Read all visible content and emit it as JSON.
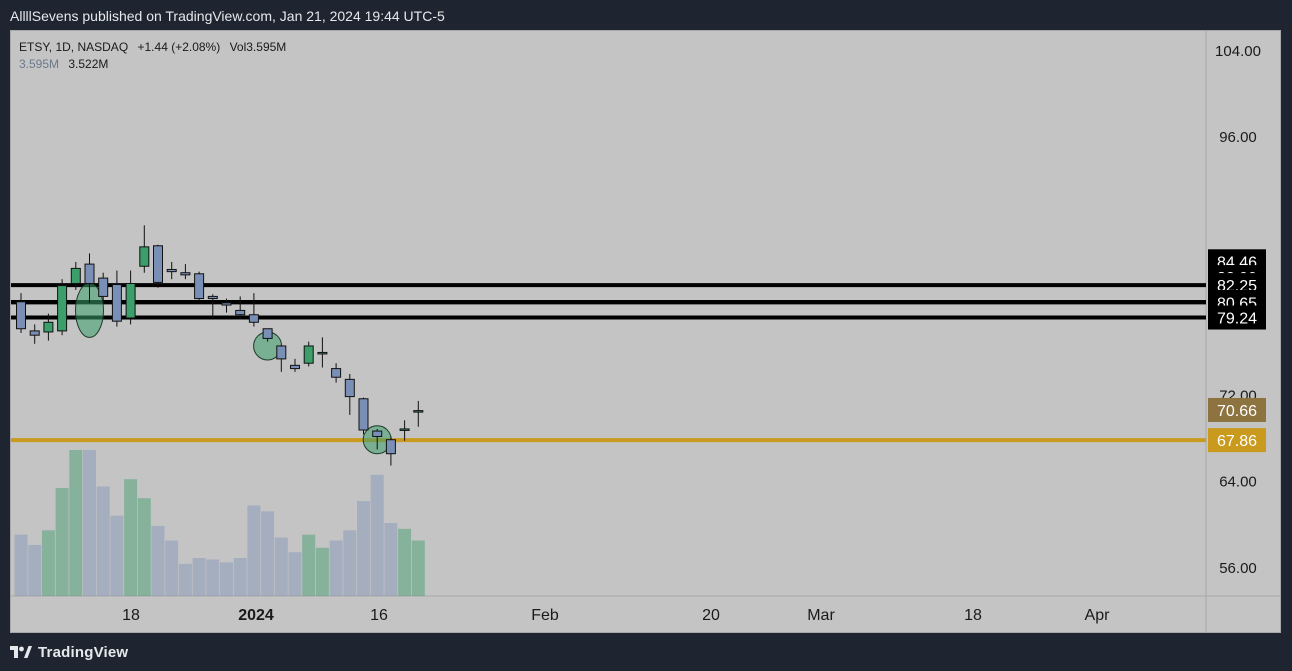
{
  "header": {
    "published": "AllllSevens published on TradingView.com, Jan 21, 2024 19:44 UTC-5"
  },
  "footer": {
    "brand": "TradingView"
  },
  "legend": {
    "symbol": "ETSY, 1D, NASDAQ",
    "change": "+1.44 (+2.08%)",
    "volume": "Vol3.595M",
    "vol_a": "3.595M",
    "vol_b": "3.522M"
  },
  "colors": {
    "up": "#3c9e6a",
    "down": "#7a8fb6",
    "hline": "#000000",
    "gold_line": "#c99a1d",
    "price_badge_dark": "#8c7340",
    "price_badge_gold": "#c99a1d"
  },
  "chart_data": {
    "type": "candlestick",
    "timeframe": "1D",
    "ylim": [
      52,
      105
    ],
    "y_ticks": [
      "104.00",
      "96.00",
      "72.00",
      "64.00",
      "56.00"
    ],
    "x_ticks": [
      "18",
      "2024",
      "16",
      "Feb",
      "20",
      "Mar",
      "18",
      "Apr"
    ],
    "candles": [
      {
        "o": 80.7,
        "h": 81.5,
        "l": 77.8,
        "c": 78.2
      },
      {
        "o": 78.0,
        "h": 78.6,
        "l": 76.8,
        "c": 77.6
      },
      {
        "o": 77.9,
        "h": 79.6,
        "l": 77.1,
        "c": 78.8
      },
      {
        "o": 78.0,
        "h": 82.8,
        "l": 77.6,
        "c": 82.2
      },
      {
        "o": 82.4,
        "h": 84.4,
        "l": 81.8,
        "c": 83.8
      },
      {
        "o": 84.2,
        "h": 85.2,
        "l": 80.6,
        "c": 82.4
      },
      {
        "o": 82.9,
        "h": 83.4,
        "l": 80.6,
        "c": 81.2
      },
      {
        "o": 82.3,
        "h": 83.6,
        "l": 78.4,
        "c": 78.9
      },
      {
        "o": 79.2,
        "h": 83.6,
        "l": 78.6,
        "c": 82.4
      },
      {
        "o": 84.0,
        "h": 87.8,
        "l": 83.4,
        "c": 85.8
      },
      {
        "o": 85.9,
        "h": 86.0,
        "l": 82.0,
        "c": 82.5
      },
      {
        "o": 83.7,
        "h": 84.4,
        "l": 82.8,
        "c": 83.5
      },
      {
        "o": 83.4,
        "h": 84.2,
        "l": 82.8,
        "c": 83.2
      },
      {
        "o": 83.3,
        "h": 83.5,
        "l": 80.8,
        "c": 81.0
      },
      {
        "o": 81.2,
        "h": 81.4,
        "l": 79.2,
        "c": 81.0
      },
      {
        "o": 80.6,
        "h": 81.0,
        "l": 79.7,
        "c": 80.4
      },
      {
        "o": 79.9,
        "h": 81.2,
        "l": 79.1,
        "c": 79.5
      },
      {
        "o": 79.5,
        "h": 81.5,
        "l": 78.4,
        "c": 78.8
      },
      {
        "o": 78.2,
        "h": 78.2,
        "l": 77.0,
        "c": 77.3
      },
      {
        "o": 76.6,
        "h": 76.7,
        "l": 74.2,
        "c": 75.4
      },
      {
        "o": 74.8,
        "h": 75.4,
        "l": 74.2,
        "c": 74.5
      },
      {
        "o": 75.0,
        "h": 77.0,
        "l": 74.7,
        "c": 76.6
      },
      {
        "o": 76.0,
        "h": 77.4,
        "l": 74.6,
        "c": 76.0
      },
      {
        "o": 74.5,
        "h": 75.0,
        "l": 73.2,
        "c": 73.7
      },
      {
        "o": 73.5,
        "h": 74.0,
        "l": 70.2,
        "c": 71.9
      },
      {
        "o": 71.7,
        "h": 71.8,
        "l": 68.4,
        "c": 68.8
      },
      {
        "o": 68.7,
        "h": 68.9,
        "l": 67.0,
        "c": 68.2
      },
      {
        "o": 67.9,
        "h": 68.2,
        "l": 65.5,
        "c": 66.6
      },
      {
        "o": 68.8,
        "h": 69.7,
        "l": 67.8,
        "c": 68.9
      },
      {
        "o": 70.5,
        "h": 71.5,
        "l": 69.1,
        "c": 70.6
      }
    ],
    "volume_relative": [
      0.42,
      0.35,
      0.45,
      0.74,
      1.0,
      1.0,
      0.75,
      0.55,
      0.8,
      0.67,
      0.48,
      0.38,
      0.22,
      0.26,
      0.25,
      0.23,
      0.26,
      0.62,
      0.58,
      0.4,
      0.3,
      0.42,
      0.33,
      0.38,
      0.45,
      0.65,
      0.83,
      0.5,
      0.46,
      0.38
    ],
    "horizontal_levels": [
      {
        "price": 84.46,
        "label": "84.46",
        "drawn": false
      },
      {
        "price": 82.99,
        "label": "82.99",
        "drawn": false
      },
      {
        "price": 82.25,
        "label": "82.25",
        "drawn": true
      },
      {
        "price": 80.68,
        "label": "80.68",
        "drawn": true
      },
      {
        "price": 80.65,
        "label": "80.65",
        "drawn": true
      },
      {
        "price": 79.24,
        "label": "79.24",
        "drawn": true
      }
    ],
    "gold_level": {
      "price": 67.86,
      "label": "67.86"
    },
    "last_price": {
      "price": 70.66,
      "label": "70.66"
    },
    "highlights": [
      {
        "bar": 5,
        "price": 79.9,
        "label": ""
      },
      {
        "bar": 18,
        "price": 76.6,
        "label": ""
      },
      {
        "bar": 26,
        "price": 67.9,
        "label": ""
      }
    ]
  }
}
